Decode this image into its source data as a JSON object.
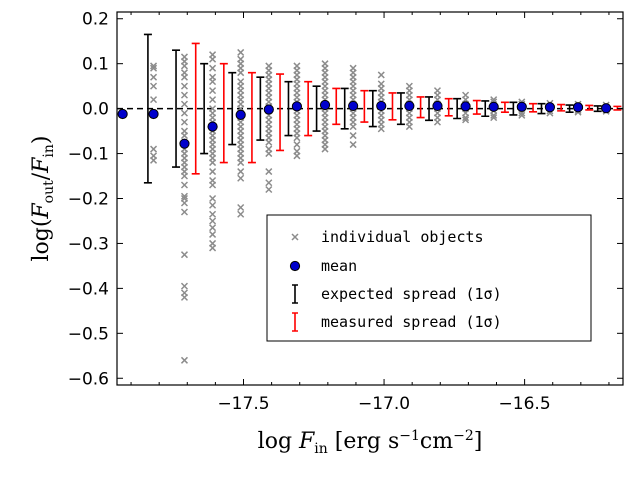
{
  "chart_data": {
    "type": "scatter",
    "xlabel": "log F_in [erg s^-1 cm^-2]",
    "ylabel": "log(F_out / F_in)",
    "xlim": [
      -17.95,
      -16.15
    ],
    "ylim": [
      -0.615,
      0.215
    ],
    "xticks": [
      -17.5,
      -17.0,
      -16.5
    ],
    "xtick_labels": [
      "−17.5",
      "−17.0",
      "−16.5"
    ],
    "yticks": [
      0.2,
      0.1,
      0.0,
      -0.1,
      -0.2,
      -0.3,
      -0.4,
      -0.5,
      -0.6
    ],
    "ytick_labels": [
      "0.2",
      "0.1",
      "0.0",
      "−0.1",
      "−0.2",
      "−0.3",
      "−0.4",
      "−0.5",
      "−0.6"
    ],
    "reference_line": {
      "y": 0.0,
      "style": "dashed"
    },
    "legend": {
      "location": "lower-right",
      "entries": [
        {
          "label": "individual objects",
          "marker": "cross",
          "color": "#8c8c8c"
        },
        {
          "label": "mean",
          "marker": "circle",
          "color": "#0000cc"
        },
        {
          "label": "expected spread (1σ)",
          "marker": "errorbar",
          "color": "#000000"
        },
        {
          "label": "measured spread (1σ)",
          "marker": "errorbar",
          "color": "#ff0000"
        }
      ]
    },
    "series": [
      {
        "name": "mean",
        "x": [
          -17.93,
          -17.82,
          -17.71,
          -17.61,
          -17.51,
          -17.41,
          -17.31,
          -17.21,
          -17.11,
          -17.01,
          -16.91,
          -16.81,
          -16.71,
          -16.61,
          -16.51,
          -16.41,
          -16.31,
          -16.21
        ],
        "y": [
          -0.012,
          -0.012,
          -0.078,
          -0.04,
          -0.014,
          -0.002,
          0.005,
          0.008,
          0.006,
          0.006,
          0.006,
          0.006,
          0.005,
          0.004,
          0.004,
          0.003,
          0.003,
          0.001
        ]
      },
      {
        "name": "expected spread (1σ)",
        "x": [
          -17.84,
          -17.74,
          -17.64,
          -17.54,
          -17.44,
          -17.34,
          -17.24,
          -17.14,
          -17.04,
          -16.94,
          -16.84,
          -16.74,
          -16.64,
          -16.54,
          -16.44,
          -16.34,
          -16.24
        ],
        "y": [
          0,
          0,
          0,
          0,
          0,
          0,
          0,
          0,
          0,
          0,
          0,
          0,
          0,
          0,
          0,
          0,
          0
        ],
        "err": [
          0.165,
          0.13,
          0.1,
          0.08,
          0.07,
          0.06,
          0.05,
          0.045,
          0.04,
          0.035,
          0.026,
          0.022,
          0.017,
          0.014,
          0.011,
          0.008,
          0.006
        ]
      },
      {
        "name": "measured spread (1σ)",
        "x": [
          -17.67,
          -17.57,
          -17.47,
          -17.37,
          -17.27,
          -17.17,
          -17.07,
          -16.97,
          -16.87,
          -16.77,
          -16.67,
          -16.57,
          -16.47,
          -16.37,
          -16.27,
          -16.17
        ],
        "y": [
          0,
          -0.01,
          -0.02,
          -0.008,
          0.0,
          0.005,
          0.005,
          0.005,
          0.003,
          0.003,
          0.003,
          0.003,
          0.002,
          0.002,
          0.002,
          0.001
        ],
        "err": [
          0.145,
          0.11,
          0.1,
          0.085,
          0.06,
          0.04,
          0.035,
          0.03,
          0.023,
          0.019,
          0.015,
          0.011,
          0.009,
          0.007,
          0.005,
          0.004
        ]
      },
      {
        "name": "individual objects",
        "x": [
          -17.82,
          -17.82,
          -17.82,
          -17.82,
          -17.82,
          -17.82,
          -17.82,
          -17.82,
          -17.82,
          -17.71,
          -17.71,
          -17.71,
          -17.71,
          -17.71,
          -17.71,
          -17.71,
          -17.71,
          -17.71,
          -17.71,
          -17.71,
          -17.71,
          -17.71,
          -17.71,
          -17.71,
          -17.71,
          -17.71,
          -17.71,
          -17.71,
          -17.71,
          -17.71,
          -17.71,
          -17.71,
          -17.71,
          -17.71,
          -17.71,
          -17.71,
          -17.71,
          -17.71,
          -17.71,
          -17.61,
          -17.61,
          -17.61,
          -17.61,
          -17.61,
          -17.61,
          -17.61,
          -17.61,
          -17.61,
          -17.61,
          -17.61,
          -17.61,
          -17.61,
          -17.61,
          -17.61,
          -17.61,
          -17.61,
          -17.61,
          -17.61,
          -17.61,
          -17.61,
          -17.61,
          -17.61,
          -17.61,
          -17.61,
          -17.61,
          -17.61,
          -17.61,
          -17.61,
          -17.61,
          -17.61,
          -17.51,
          -17.51,
          -17.51,
          -17.51,
          -17.51,
          -17.51,
          -17.51,
          -17.51,
          -17.51,
          -17.51,
          -17.51,
          -17.51,
          -17.51,
          -17.51,
          -17.51,
          -17.51,
          -17.51,
          -17.51,
          -17.51,
          -17.51,
          -17.51,
          -17.51,
          -17.51,
          -17.51,
          -17.51,
          -17.51,
          -17.51,
          -17.51,
          -17.41,
          -17.41,
          -17.41,
          -17.41,
          -17.41,
          -17.41,
          -17.41,
          -17.41,
          -17.41,
          -17.41,
          -17.41,
          -17.41,
          -17.41,
          -17.41,
          -17.41,
          -17.41,
          -17.41,
          -17.41,
          -17.41,
          -17.41,
          -17.41,
          -17.41,
          -17.41,
          -17.31,
          -17.31,
          -17.31,
          -17.31,
          -17.31,
          -17.31,
          -17.31,
          -17.31,
          -17.31,
          -17.31,
          -17.31,
          -17.31,
          -17.31,
          -17.31,
          -17.31,
          -17.31,
          -17.31,
          -17.31,
          -17.31,
          -17.31,
          -17.21,
          -17.21,
          -17.21,
          -17.21,
          -17.21,
          -17.21,
          -17.21,
          -17.21,
          -17.21,
          -17.21,
          -17.21,
          -17.21,
          -17.21,
          -17.21,
          -17.21,
          -17.21,
          -17.21,
          -17.21,
          -17.21,
          -17.21,
          -17.11,
          -17.11,
          -17.11,
          -17.11,
          -17.11,
          -17.11,
          -17.11,
          -17.11,
          -17.11,
          -17.11,
          -17.11,
          -17.11,
          -17.11,
          -17.11,
          -17.11,
          -17.11,
          -17.01,
          -17.01,
          -17.01,
          -17.01,
          -17.01,
          -17.01,
          -17.01,
          -17.01,
          -17.01,
          -17.01,
          -17.01,
          -17.01,
          -16.91,
          -16.91,
          -16.91,
          -16.91,
          -16.91,
          -16.91,
          -16.91,
          -16.91,
          -16.91,
          -16.91,
          -16.81,
          -16.81,
          -16.81,
          -16.81,
          -16.81,
          -16.81,
          -16.81,
          -16.81,
          -16.71,
          -16.71,
          -16.71,
          -16.71,
          -16.71,
          -16.71,
          -16.71,
          -16.61,
          -16.61,
          -16.61,
          -16.61,
          -16.61,
          -16.61,
          -16.51,
          -16.51,
          -16.51,
          -16.51,
          -16.51,
          -16.41,
          -16.41,
          -16.41,
          -16.41,
          -16.31,
          -16.31,
          -16.31,
          -16.31,
          -16.21,
          -16.21,
          -16.21,
          -16.21
        ],
        "y": [
          0.095,
          0.09,
          0.07,
          0.05,
          0.02,
          -0.01,
          -0.09,
          -0.105,
          -0.115,
          0.115,
          0.105,
          0.095,
          0.08,
          0.07,
          0.05,
          0.03,
          0.01,
          -0.01,
          -0.03,
          -0.05,
          -0.06,
          -0.08,
          -0.09,
          -0.1,
          -0.11,
          -0.12,
          -0.13,
          -0.14,
          -0.15,
          -0.17,
          -0.195,
          -0.2,
          -0.21,
          -0.23,
          -0.325,
          -0.395,
          -0.41,
          -0.42,
          -0.56,
          0.12,
          0.11,
          0.09,
          0.07,
          0.06,
          0.04,
          0.02,
          0.0,
          -0.01,
          -0.02,
          -0.03,
          -0.04,
          -0.05,
          -0.06,
          -0.07,
          -0.08,
          -0.09,
          -0.1,
          -0.11,
          -0.12,
          -0.14,
          -0.16,
          -0.17,
          -0.2,
          -0.215,
          -0.235,
          -0.25,
          -0.265,
          -0.28,
          -0.3,
          -0.31,
          0.125,
          0.11,
          0.1,
          0.09,
          0.08,
          0.06,
          0.05,
          0.04,
          0.03,
          0.02,
          0.01,
          0.0,
          -0.01,
          -0.02,
          -0.03,
          -0.04,
          -0.05,
          -0.06,
          -0.07,
          -0.08,
          -0.09,
          -0.1,
          -0.11,
          -0.12,
          -0.14,
          -0.155,
          -0.22,
          -0.235,
          0.095,
          0.085,
          0.075,
          0.065,
          0.055,
          0.045,
          0.035,
          0.025,
          0.015,
          0.005,
          -0.005,
          -0.015,
          -0.025,
          -0.035,
          -0.045,
          -0.055,
          -0.065,
          -0.075,
          -0.09,
          -0.1,
          -0.14,
          -0.165,
          -0.18,
          0.095,
          0.085,
          0.075,
          0.065,
          0.055,
          0.045,
          0.035,
          0.025,
          0.015,
          0.005,
          -0.005,
          -0.015,
          -0.025,
          -0.035,
          -0.045,
          -0.055,
          -0.065,
          -0.08,
          -0.095,
          -0.105,
          0.1,
          0.09,
          0.08,
          0.07,
          0.06,
          0.05,
          0.04,
          0.03,
          0.02,
          0.01,
          0.0,
          -0.01,
          -0.02,
          -0.03,
          -0.04,
          -0.05,
          -0.06,
          -0.07,
          -0.08,
          -0.09,
          0.09,
          0.08,
          0.07,
          0.06,
          0.05,
          0.04,
          0.03,
          0.02,
          0.01,
          0.0,
          -0.01,
          -0.02,
          -0.03,
          -0.04,
          -0.06,
          -0.08,
          0.075,
          0.055,
          0.045,
          0.035,
          0.025,
          0.015,
          0.005,
          -0.005,
          -0.015,
          -0.025,
          -0.035,
          -0.045,
          0.05,
          0.04,
          0.03,
          0.02,
          0.01,
          0.0,
          -0.01,
          -0.02,
          -0.03,
          -0.04,
          0.04,
          0.03,
          0.02,
          0.01,
          0.0,
          -0.01,
          -0.02,
          -0.03,
          0.03,
          0.02,
          0.01,
          0.0,
          -0.01,
          -0.02,
          -0.025,
          0.02,
          0.015,
          0.005,
          -0.005,
          -0.015,
          -0.02,
          0.015,
          0.01,
          0.0,
          -0.01,
          -0.015,
          0.012,
          0.005,
          -0.005,
          -0.01,
          0.01,
          0.004,
          -0.004,
          -0.008,
          0.008,
          0.003,
          -0.003,
          -0.006
        ]
      }
    ]
  },
  "palette": {
    "cross": "#8c8c8c",
    "mean_fill": "#0000cc",
    "mean_edge": "#000000",
    "expected": "#000000",
    "measured": "#ff0000",
    "frame": "#000000"
  }
}
